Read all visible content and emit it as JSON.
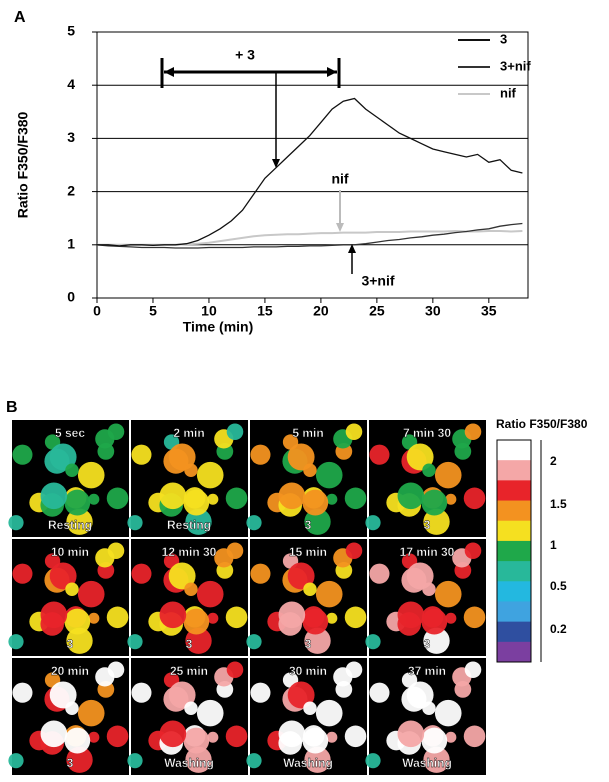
{
  "panel_a_label": "A",
  "chart_data": {
    "type": "line",
    "x_label": "Time (min)",
    "y_label": "Ratio F350/F380",
    "x": [
      0,
      1,
      2,
      3,
      4,
      5,
      6,
      7,
      8,
      9,
      10,
      11,
      12,
      13,
      14,
      15,
      16,
      17,
      18,
      19,
      20,
      21,
      22,
      23,
      24,
      25,
      26,
      27,
      28,
      29,
      30,
      31,
      32,
      33,
      34,
      35,
      36,
      37,
      38
    ],
    "series": [
      {
        "name": "3",
        "color": "#111111",
        "values": [
          1,
          1,
          0.98,
          1,
          1,
          0.99,
          1,
          1,
          1.02,
          1.08,
          1.18,
          1.3,
          1.45,
          1.65,
          1.95,
          2.25,
          2.45,
          2.65,
          2.85,
          3.05,
          3.3,
          3.55,
          3.7,
          3.75,
          3.55,
          3.4,
          3.25,
          3.1,
          3.0,
          2.9,
          2.8,
          2.75,
          2.7,
          2.65,
          2.7,
          2.55,
          2.6,
          2.4,
          2.35
        ]
      },
      {
        "name": "3+nif",
        "color": "#333333",
        "values": [
          1,
          0.98,
          0.97,
          0.96,
          0.95,
          0.95,
          0.95,
          0.94,
          0.94,
          0.94,
          0.95,
          0.95,
          0.95,
          0.95,
          0.96,
          0.96,
          0.96,
          0.97,
          0.97,
          0.98,
          0.98,
          0.99,
          1,
          1,
          1.02,
          1.05,
          1.08,
          1.1,
          1.13,
          1.15,
          1.18,
          1.2,
          1.23,
          1.25,
          1.28,
          1.3,
          1.35,
          1.38,
          1.4
        ]
      },
      {
        "name": "nif",
        "color": "#c8c8c8",
        "values": [
          1,
          1,
          1,
          1,
          1,
          1,
          1,
          1,
          1.01,
          1.02,
          1.04,
          1.07,
          1.1,
          1.13,
          1.16,
          1.18,
          1.19,
          1.2,
          1.2,
          1.21,
          1.22,
          1.22,
          1.23,
          1.23,
          1.23,
          1.24,
          1.24,
          1.24,
          1.25,
          1.25,
          1.25,
          1.25,
          1.26,
          1.25,
          1.25,
          1.26,
          1.26,
          1.25,
          1.26
        ]
      }
    ],
    "xlim": [
      0,
      38.5
    ],
    "xticks": [
      0,
      5,
      10,
      15,
      20,
      25,
      30,
      35
    ],
    "ylim": [
      0,
      5
    ],
    "yticks": [
      0,
      1,
      2,
      3,
      4,
      5
    ],
    "grid": true,
    "annotations": [
      "+ 3",
      "nif",
      "3+nif"
    ]
  },
  "panel_b": {
    "label": "B",
    "tiles": [
      {
        "time": "5 sec",
        "condition": "Resting"
      },
      {
        "time": "2 min",
        "condition": "Resting"
      },
      {
        "time": "5 min",
        "condition": "3"
      },
      {
        "time": "7 min 30",
        "condition": "3"
      },
      {
        "time": "10 min",
        "condition": "3"
      },
      {
        "time": "12 min 30",
        "condition": "3"
      },
      {
        "time": "15 min",
        "condition": "3"
      },
      {
        "time": "17 min 30",
        "condition": "3"
      },
      {
        "time": "20 min",
        "condition": "3"
      },
      {
        "time": "25 min",
        "condition": "Washing"
      },
      {
        "time": "30 min",
        "condition": "Washing"
      },
      {
        "time": "37 min",
        "condition": "Washing"
      }
    ],
    "colorbar": {
      "title": "Ratio F350/F380",
      "labels": [
        2,
        1.5,
        1,
        0.5,
        0.2
      ],
      "colors": [
        "#ffffff",
        "#f4a7a7",
        "#e8242a",
        "#f39220",
        "#f5e020",
        "#1fa84a",
        "#28b89a",
        "#23b8e0",
        "#3fa3e0",
        "#2f4fa0",
        "#7b3fa0"
      ]
    }
  }
}
